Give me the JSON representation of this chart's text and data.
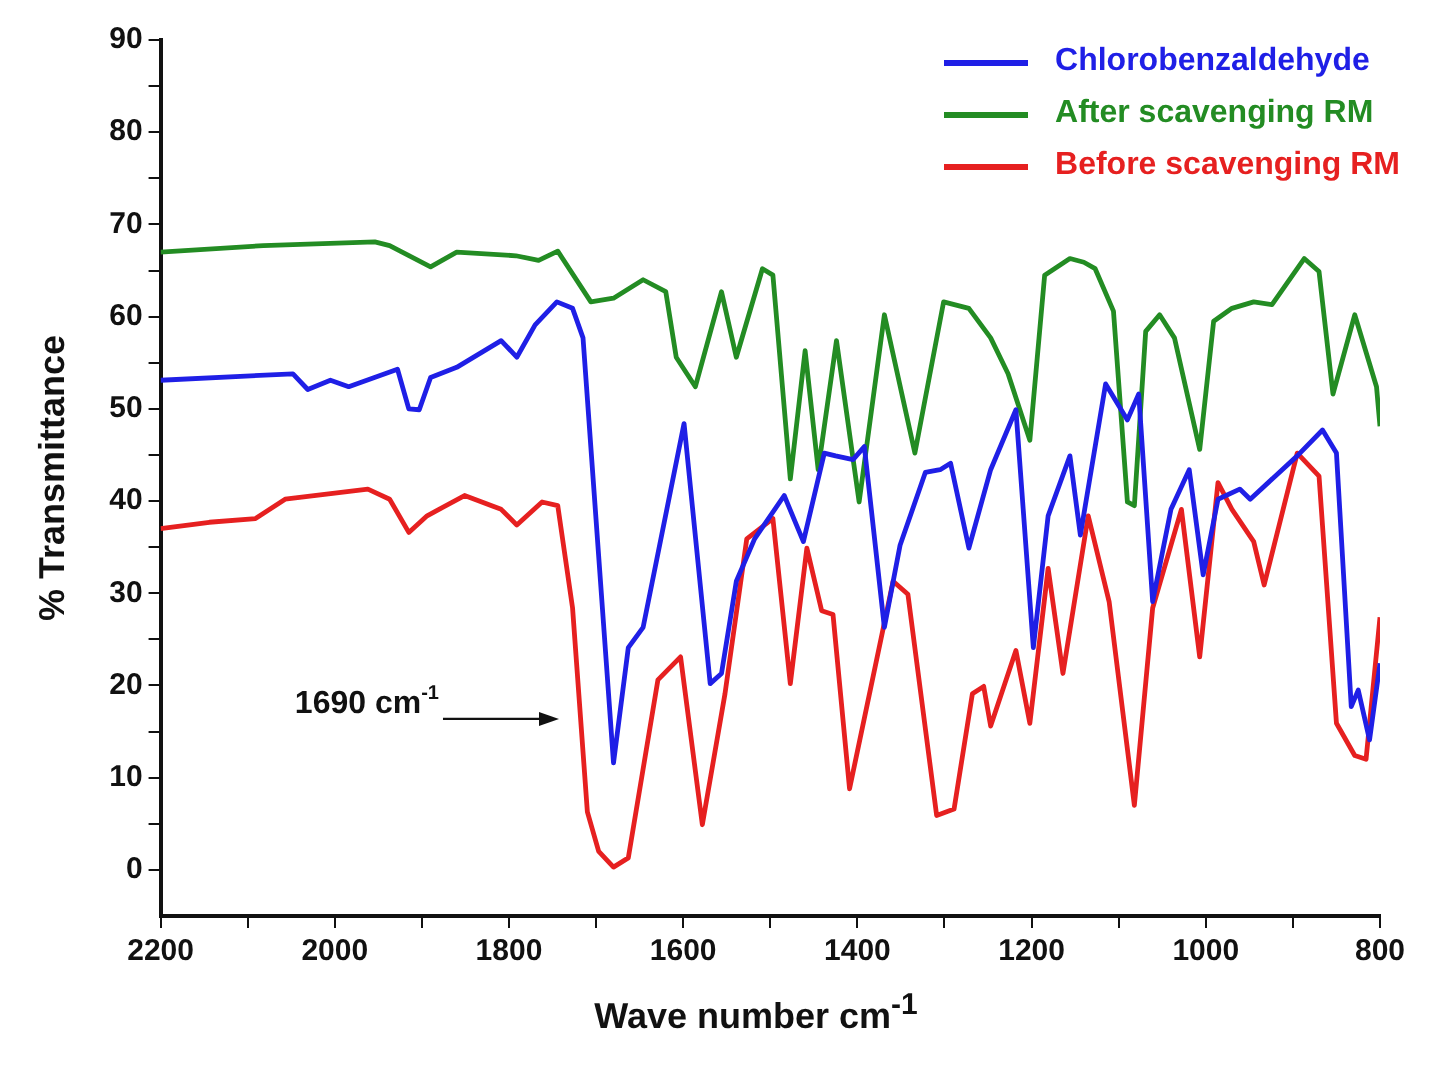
{
  "chart_data": {
    "type": "line",
    "xlabel": "Wave number cm$^{-1}$",
    "ylabel": "% Transmittance",
    "xlim": [
      2200,
      800
    ],
    "ylim": [
      -5,
      90
    ],
    "xticks": [
      2200,
      {
        "value": 2100,
        "label": null
      },
      2000,
      {
        "value": 1900,
        "label": null
      },
      1800,
      {
        "value": 1700,
        "label": null
      },
      1600,
      {
        "value": 1500,
        "label": null
      },
      1400,
      {
        "value": 1300,
        "label": null
      },
      1200,
      {
        "value": 1100,
        "label": null
      },
      1000,
      {
        "value": 900,
        "label": null
      },
      800
    ],
    "yticks": [
      0,
      {
        "value": 5,
        "label": null
      },
      10,
      {
        "value": 15,
        "label": null
      },
      20,
      {
        "value": 25,
        "label": null
      },
      30,
      {
        "value": 35,
        "label": null
      },
      40,
      {
        "value": 45,
        "label": null
      },
      50,
      {
        "value": 55,
        "label": null
      },
      60,
      {
        "value": 65,
        "label": null
      },
      70,
      {
        "value": 75,
        "label": null
      },
      80,
      {
        "value": 85,
        "label": null
      },
      90
    ],
    "grid": false,
    "legend": "top right",
    "marker": "none",
    "line_style": "solid",
    "annotations": [
      "1690 cm$^{-1}$"
    ],
    "series": [
      {
        "name": "Chlorobenzaldehyde",
        "color": "#1f1fe6",
        "x": [
          2200,
          2048,
          2031,
          2005,
          1984,
          1928,
          1915,
          1903,
          1890,
          1860,
          1809,
          1791,
          1770,
          1745,
          1727,
          1715,
          1680,
          1663,
          1646,
          1599,
          1569,
          1556,
          1539,
          1518,
          1484,
          1462,
          1438,
          1425,
          1405,
          1392,
          1369,
          1351,
          1322,
          1305,
          1293,
          1272,
          1247,
          1218,
          1198,
          1181,
          1156,
          1144,
          1115,
          1090,
          1077,
          1061,
          1040,
          1019,
          1003,
          986,
          961,
          949,
          895,
          866,
          850,
          833,
          825,
          812,
          800
        ],
        "values": [
          53.1,
          53.8,
          52.1,
          53.1,
          52.4,
          54.3,
          50.0,
          49.9,
          53.4,
          54.5,
          57.4,
          55.6,
          59.1,
          61.6,
          60.9,
          57.7,
          11.6,
          24.1,
          26.3,
          48.4,
          20.2,
          21.3,
          31.3,
          35.9,
          40.6,
          35.6,
          45.2,
          44.9,
          44.5,
          45.9,
          26.3,
          35.2,
          43.1,
          43.4,
          44.1,
          34.9,
          43.4,
          49.9,
          24.1,
          38.4,
          44.9,
          36.3,
          52.7,
          48.8,
          51.6,
          29.1,
          39.1,
          43.4,
          32.0,
          40.2,
          41.3,
          40.2,
          44.9,
          47.7,
          45.2,
          17.7,
          19.5,
          14.1,
          22.4
        ]
      },
      {
        "name": "After scavenging RM",
        "color": "#238c23",
        "x": [
          2200,
          2082,
          1954,
          1937,
          1890,
          1860,
          1792,
          1766,
          1744,
          1706,
          1680,
          1646,
          1620,
          1608,
          1586,
          1556,
          1539,
          1509,
          1497,
          1477,
          1460,
          1445,
          1424,
          1398,
          1369,
          1334,
          1301,
          1272,
          1247,
          1227,
          1202,
          1185,
          1156,
          1140,
          1127,
          1106,
          1090,
          1082,
          1069,
          1053,
          1036,
          1007,
          991,
          970,
          945,
          924,
          887,
          870,
          854,
          829,
          804,
          800
        ],
        "values": [
          67.0,
          67.7,
          68.1,
          67.7,
          65.4,
          67.0,
          66.6,
          66.1,
          67.1,
          61.6,
          62.0,
          64.0,
          62.7,
          55.6,
          52.4,
          62.7,
          55.6,
          65.2,
          64.5,
          42.4,
          56.3,
          43.4,
          57.4,
          39.9,
          60.2,
          45.2,
          61.6,
          60.9,
          57.7,
          53.8,
          46.6,
          64.5,
          66.3,
          65.9,
          65.2,
          60.6,
          39.9,
          39.5,
          58.4,
          60.2,
          57.7,
          45.6,
          59.5,
          60.9,
          61.6,
          61.3,
          66.3,
          64.9,
          51.6,
          60.2,
          52.4,
          48.1
        ]
      },
      {
        "name": "Before scavenging RM",
        "color": "#e62020",
        "x": [
          2200,
          2144,
          2091,
          2057,
          1962,
          1937,
          1915,
          1894,
          1851,
          1809,
          1791,
          1762,
          1744,
          1727,
          1710,
          1697,
          1680,
          1663,
          1629,
          1603,
          1578,
          1552,
          1527,
          1497,
          1477,
          1458,
          1441,
          1428,
          1409,
          1359,
          1342,
          1309,
          1289,
          1268,
          1255,
          1247,
          1218,
          1202,
          1181,
          1164,
          1135,
          1111,
          1082,
          1061,
          1028,
          1007,
          986,
          970,
          945,
          933,
          895,
          870,
          850,
          829,
          816,
          800
        ],
        "values": [
          37.0,
          37.7,
          38.1,
          40.2,
          41.3,
          40.2,
          36.6,
          38.4,
          40.6,
          39.1,
          37.4,
          39.9,
          39.5,
          28.4,
          6.3,
          2.0,
          0.3,
          1.3,
          20.6,
          23.1,
          4.9,
          19.1,
          35.9,
          38.1,
          20.2,
          34.9,
          28.1,
          27.7,
          8.8,
          31.3,
          29.9,
          5.9,
          6.6,
          19.1,
          19.9,
          15.6,
          23.8,
          15.9,
          32.7,
          21.3,
          38.4,
          29.1,
          7.0,
          28.4,
          39.1,
          23.1,
          42.0,
          39.1,
          35.6,
          30.9,
          45.2,
          42.7,
          15.9,
          12.4,
          12.0,
          27.4
        ]
      }
    ]
  }
}
